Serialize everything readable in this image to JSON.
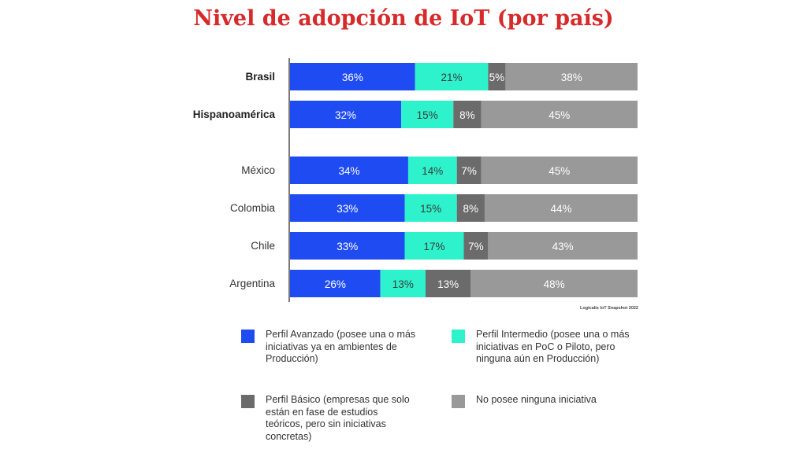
{
  "chart_data": {
    "type": "bar",
    "orientation": "horizontal",
    "stacked": true,
    "title": "Nivel de adopción de IoT (por país)",
    "categories": [
      "Brasil",
      "Hispanoamérica",
      "México",
      "Colombia",
      "Chile",
      "Argentina"
    ],
    "bold_categories": [
      "Brasil",
      "Hispanoamérica"
    ],
    "xlim": [
      0,
      100
    ],
    "grid": false,
    "legend_position": "bottom",
    "series": [
      {
        "name": "Perfil Avanzado (posee una o más iniciativas ya en ambientes de Producción)",
        "color": "#1f4cf2",
        "label_color": "#ffffff",
        "values": [
          36,
          32,
          34,
          33,
          33,
          26
        ],
        "labels": [
          "36%",
          "32%",
          "34%",
          "33%",
          "33%",
          "26%"
        ]
      },
      {
        "name": "Perfil Intermedio (posee una o más iniciativas en PoC o Piloto, pero ninguna aún en Producción)",
        "color": "#2ef2cc",
        "label_color": "#3a3a3a",
        "values": [
          21,
          15,
          14,
          15,
          17,
          13
        ],
        "labels": [
          "21%",
          "15%",
          "14%",
          "15%",
          "17%",
          "13%"
        ]
      },
      {
        "name": "Perfil Básico (empresas que solo están en fase de estudios teóricos, pero sin iniciativas concretas)",
        "color": "#6b6b6b",
        "label_color": "#ffffff",
        "values": [
          5,
          8,
          7,
          8,
          7,
          13
        ],
        "labels": [
          "5%",
          "8%",
          "7%",
          "8%",
          "7%",
          "13%"
        ]
      },
      {
        "name": "No posee ninguna iniciativa",
        "color": "#999999",
        "label_color": "#ffffff",
        "values": [
          38,
          45,
          45,
          44,
          43,
          48
        ],
        "labels": [
          "38%",
          "45%",
          "45%",
          "44%",
          "43%",
          "48%"
        ]
      }
    ],
    "source_note": "Logicalis IoT Snapshot 2022"
  }
}
